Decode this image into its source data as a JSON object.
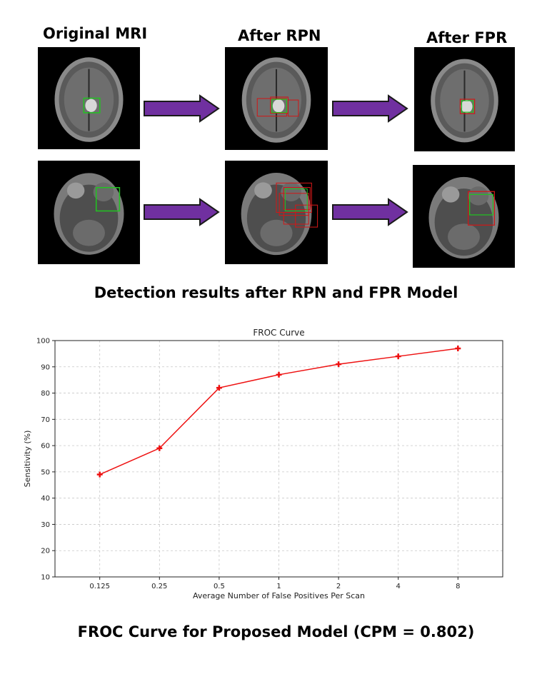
{
  "figure": {
    "columns": [
      "Original MRI",
      "After RPN",
      "After FPR"
    ],
    "detection_caption": "Detection results after RPN and FPR Model",
    "froc_caption": "FROC Curve for Proposed Model (CPM = 0.802)"
  },
  "colors": {
    "arrow_fill": "#7030a0",
    "arrow_stroke": "#1a1a1a",
    "gt_box": "#22c322",
    "proposal_box": "#d01818",
    "curve": "#ee1111"
  },
  "chart_data": {
    "type": "line",
    "title": "FROC Curve",
    "xlabel": "Average Number of False Positives Per Scan",
    "ylabel": "Sensitivity (%)",
    "x_scale": "log2",
    "categories": [
      "0.125",
      "0.25",
      "0.5",
      "1",
      "2",
      "4",
      "8"
    ],
    "x": [
      0.125,
      0.25,
      0.5,
      1,
      2,
      4,
      8
    ],
    "series": [
      {
        "values": [
          49,
          59,
          82,
          87,
          91,
          94,
          97
        ]
      }
    ],
    "ylim": [
      10,
      100
    ],
    "yticks": [
      "10",
      "20",
      "30",
      "40",
      "50",
      "60",
      "70",
      "80",
      "90",
      "100"
    ],
    "grid": true,
    "marker": "plus"
  }
}
